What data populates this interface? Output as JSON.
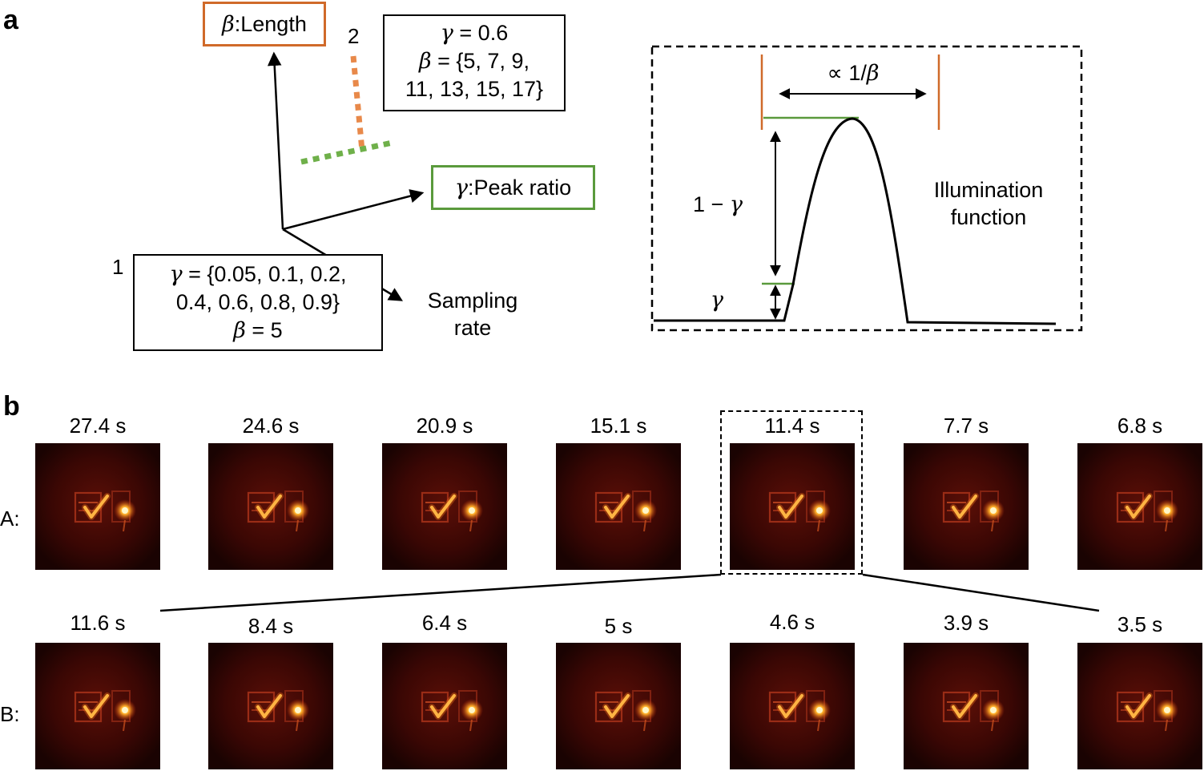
{
  "panel_a": {
    "letter": "a",
    "axis_beta": {
      "symbol": "β",
      "text": ":Length",
      "color": "#d06a2a"
    },
    "axis_gamma": {
      "symbol": "γ",
      "text": ":Peak ratio",
      "color": "#5a9a3c"
    },
    "axis_sampling": {
      "line1": "Sampling",
      "line2": "rate"
    },
    "point1": {
      "number": "1",
      "line1_sym": "γ",
      "line1_rest": " = {0.05, 0.1, 0.2,",
      "line2": "0.4, 0.6, 0.8, 0.9}",
      "line3_sym": "β",
      "line3_rest": " = 5"
    },
    "point2": {
      "number": "2",
      "line1_sym": "γ",
      "line1_rest": " = 0.6",
      "line2_sym": "β",
      "line2_rest": " = {5, 7, 9,",
      "line3": "11, 13, 15, 17}"
    },
    "illumination": {
      "width_label_prefix": "∝ 1/",
      "width_label_sym": "β",
      "height_label_prefix": "1 − ",
      "height_label_sym": "γ",
      "base_label_sym": "γ",
      "title_line1": "Illumination",
      "title_line2": "function"
    }
  },
  "panel_b": {
    "letter": "b",
    "row_a": {
      "label": "A:",
      "times": [
        "27.4 s",
        "24.6 s",
        "20.9 s",
        "15.1 s",
        "11.4 s",
        "7.7 s",
        "6.8 s"
      ]
    },
    "row_b": {
      "label": "B:",
      "times": [
        "11.6 s",
        "8.4 s",
        "6.4 s",
        "5 s",
        "4.6 s",
        "3.9 s",
        "3.5 s"
      ]
    },
    "highlighted_index": 4
  }
}
